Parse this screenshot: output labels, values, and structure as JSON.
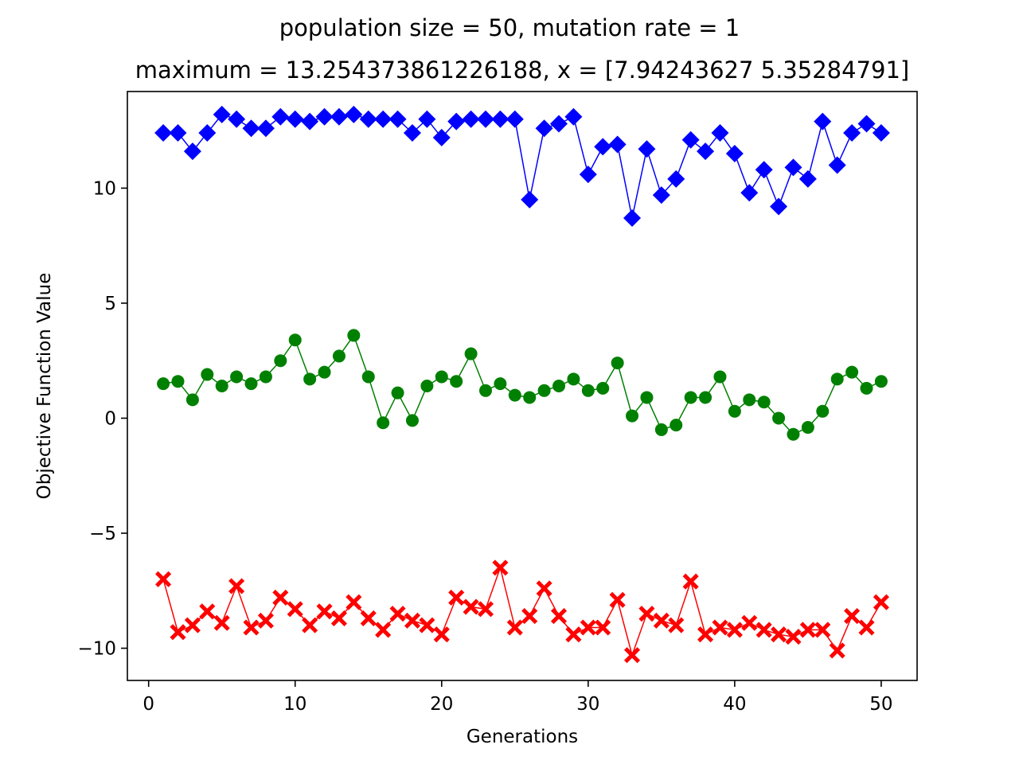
{
  "chart_data": {
    "type": "line",
    "title": "population size = 50, mutation rate = 1",
    "subtitle": "maximum = 13.254373861226188, x = [7.94243627 5.35284791]",
    "xlabel": "Generations",
    "ylabel": "Objective Function Value",
    "xlim": [
      -1.45,
      52.45
    ],
    "ylim": [
      -11.4,
      14.2
    ],
    "xticks": [
      0,
      10,
      20,
      30,
      40,
      50
    ],
    "xtick_labels": [
      "0",
      "10",
      "20",
      "30",
      "40",
      "50"
    ],
    "yticks": [
      -10,
      -5,
      0,
      5,
      10
    ],
    "ytick_labels": [
      "−10",
      "−5",
      "0",
      "5",
      "10"
    ],
    "grid": false,
    "x": [
      1,
      2,
      3,
      4,
      5,
      6,
      7,
      8,
      9,
      10,
      11,
      12,
      13,
      14,
      15,
      16,
      17,
      18,
      19,
      20,
      21,
      22,
      23,
      24,
      25,
      26,
      27,
      28,
      29,
      30,
      31,
      32,
      33,
      34,
      35,
      36,
      37,
      38,
      39,
      40,
      41,
      42,
      43,
      44,
      45,
      46,
      47,
      48,
      49,
      50
    ],
    "series": [
      {
        "color": "#0000ff",
        "marker": "diamond",
        "values": [
          12.4,
          12.4,
          11.6,
          12.4,
          13.2,
          13.0,
          12.6,
          12.6,
          13.1,
          13.0,
          12.9,
          13.1,
          13.1,
          13.2,
          13.0,
          13.0,
          13.0,
          12.4,
          13.0,
          12.2,
          12.9,
          13.0,
          13.0,
          13.0,
          13.0,
          9.5,
          12.6,
          12.8,
          13.1,
          10.6,
          11.8,
          11.9,
          8.7,
          11.7,
          9.7,
          10.4,
          12.1,
          11.6,
          12.4,
          11.5,
          9.8,
          10.8,
          9.2,
          10.9,
          10.4,
          12.9,
          11.0,
          12.4,
          12.8,
          12.4
        ]
      },
      {
        "color": "#008000",
        "marker": "circle",
        "values": [
          1.5,
          1.6,
          0.8,
          1.9,
          1.4,
          1.8,
          1.5,
          1.8,
          2.5,
          3.4,
          1.7,
          2.0,
          2.7,
          3.6,
          1.8,
          -0.2,
          1.1,
          -0.1,
          1.4,
          1.8,
          1.6,
          2.8,
          1.2,
          1.5,
          1.0,
          0.9,
          1.2,
          1.4,
          1.7,
          1.2,
          1.3,
          2.4,
          0.1,
          0.9,
          -0.5,
          -0.3,
          0.9,
          0.9,
          1.8,
          0.3,
          0.8,
          0.7,
          0.0,
          -0.7,
          -0.4,
          0.3,
          1.7,
          2.0,
          1.3,
          1.6
        ]
      },
      {
        "color": "#ff0000",
        "marker": "x",
        "values": [
          -7.0,
          -9.3,
          -9.0,
          -8.4,
          -8.9,
          -7.3,
          -9.1,
          -8.8,
          -7.8,
          -8.3,
          -9.0,
          -8.4,
          -8.7,
          -8.0,
          -8.7,
          -9.2,
          -8.5,
          -8.8,
          -9.0,
          -9.4,
          -7.8,
          -8.2,
          -8.3,
          -6.5,
          -9.1,
          -8.6,
          -7.4,
          -8.6,
          -9.4,
          -9.1,
          -9.1,
          -7.9,
          -10.3,
          -8.5,
          -8.8,
          -9.0,
          -7.1,
          -9.4,
          -9.1,
          -9.2,
          -8.9,
          -9.2,
          -9.4,
          -9.5,
          -9.2,
          -9.2,
          -10.1,
          -8.6,
          -9.1,
          -8.0
        ]
      }
    ]
  }
}
